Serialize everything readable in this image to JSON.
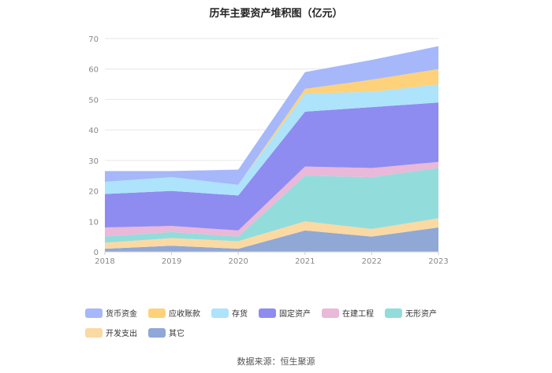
{
  "chart_data": {
    "type": "area",
    "stacked": true,
    "title": "历年主要资产堆积图（亿元）",
    "categories": [
      "2018",
      "2019",
      "2020",
      "2021",
      "2022",
      "2023"
    ],
    "y_ticks": [
      "0",
      "10",
      "20",
      "30",
      "40",
      "50",
      "60",
      "70"
    ],
    "ylim": [
      0,
      70
    ],
    "xlabel": "",
    "ylabel": "",
    "legend_position": "bottom",
    "series": [
      {
        "name": "其它",
        "color": "#8fa8d6",
        "values": [
          1.0,
          2.0,
          1.0,
          7.0,
          5.0,
          8.0
        ]
      },
      {
        "name": "开发支出",
        "color": "#fbd9a2",
        "values": [
          2.0,
          2.5,
          2.5,
          3.0,
          2.5,
          3.0
        ]
      },
      {
        "name": "无形资产",
        "color": "#93dcdc",
        "values": [
          2.0,
          2.0,
          1.5,
          15.0,
          17.0,
          16.5
        ]
      },
      {
        "name": "在建工程",
        "color": "#eab8d8",
        "values": [
          3.0,
          2.0,
          2.0,
          3.0,
          3.0,
          2.0
        ]
      },
      {
        "name": "固定资产",
        "color": "#8e8cf0",
        "values": [
          11.0,
          11.5,
          11.5,
          18.0,
          20.0,
          19.5
        ]
      },
      {
        "name": "存货",
        "color": "#ade3fb",
        "values": [
          4.0,
          4.5,
          3.5,
          6.0,
          5.0,
          6.0
        ]
      },
      {
        "name": "应收账款",
        "color": "#fdd27a",
        "values": [
          0.0,
          0.0,
          0.0,
          1.5,
          4.0,
          5.0
        ]
      },
      {
        "name": "货币资金",
        "color": "#a6b8fa",
        "values": [
          3.5,
          2.0,
          5.0,
          5.5,
          6.5,
          7.5
        ]
      }
    ],
    "legend_order": [
      "货币资金",
      "应收账款",
      "存货",
      "固定资产",
      "在建工程",
      "无形资产",
      "开发支出",
      "其它"
    ]
  },
  "source": "数据来源：恒生聚源"
}
